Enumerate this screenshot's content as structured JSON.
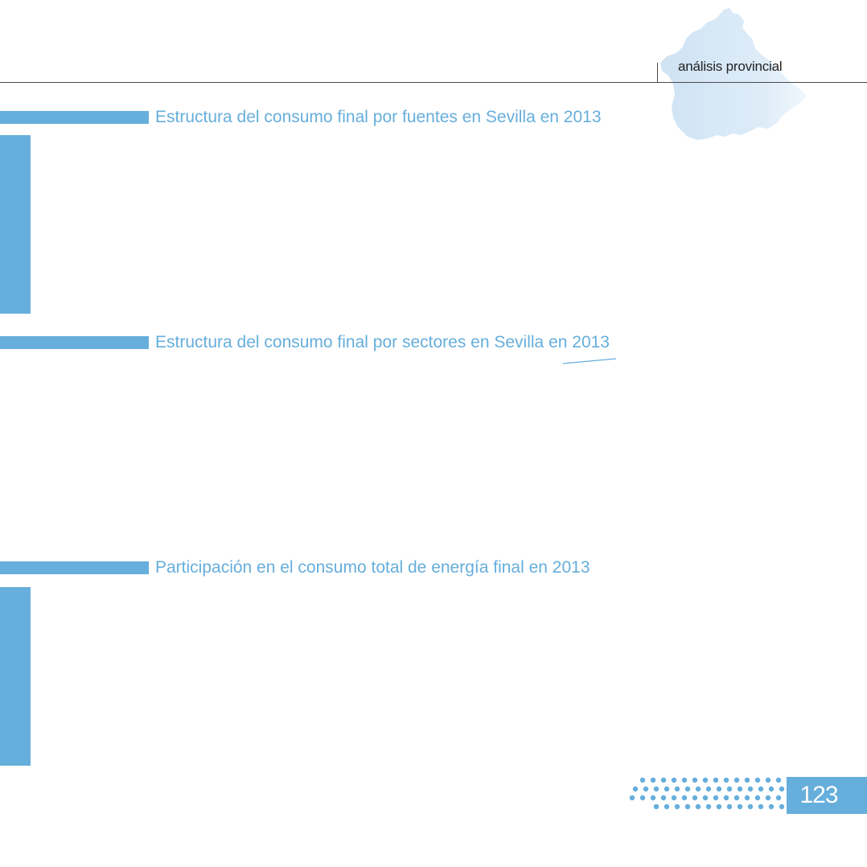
{
  "header": {
    "section_label": "análisis provincial"
  },
  "sections": [
    {
      "title": "Estructura del consumo final por fuentes en Sevilla en 2013"
    },
    {
      "title": "Estructura del consumo final por sectores en Sevilla en 2013"
    },
    {
      "title": "Participación en el consumo total de energía final en 2013"
    }
  ],
  "footer": {
    "page_number": "123"
  },
  "colors": {
    "accent": "#66aedc",
    "map_fill": "#d6e8f6",
    "rule": "#4a4a4a"
  }
}
